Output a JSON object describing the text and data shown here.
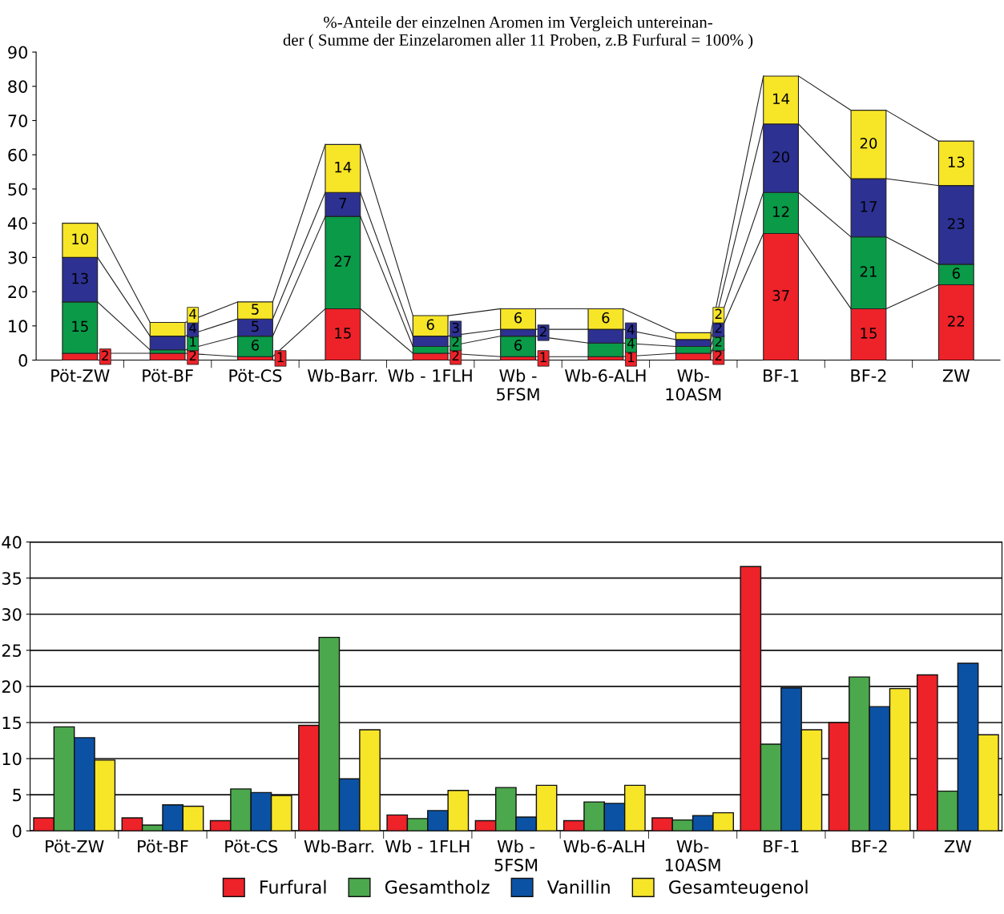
{
  "chart_data": [
    {
      "type": "bar",
      "title": "%-Anteile der einzelnen Aromen im Vergleich untereinan-\nder ( Summe der Einzelaromen aller 11 Proben, z.B Furfural = 100% )",
      "categories": [
        "Pöt-ZW",
        "Pöt-BF",
        "Pöt-CS",
        "Wb-Barr.",
        "Wb - 1FLH",
        "Wb -\n5FSM",
        "Wb-6-ALH",
        "Wb-\n10ASM",
        "BF-1",
        "BF-2",
        "ZW"
      ],
      "stacked": true,
      "data_labels": true,
      "grid": false,
      "legend": false,
      "ylim": [
        0,
        90
      ],
      "yticks": [
        0,
        10,
        20,
        30,
        40,
        50,
        60,
        70,
        80,
        90
      ],
      "series": [
        {
          "color": "#ee2229",
          "values": [
            2,
            2,
            1,
            15,
            2,
            1,
            1,
            2,
            37,
            15,
            22
          ]
        },
        {
          "color": "#0a9a48",
          "values": [
            15,
            1,
            6,
            27,
            2,
            6,
            4,
            2,
            12,
            21,
            6
          ]
        },
        {
          "color": "#2d3192",
          "values": [
            13,
            4,
            5,
            7,
            3,
            2,
            4,
            2,
            20,
            17,
            23
          ]
        },
        {
          "color": "#f7e528",
          "values": [
            10,
            4,
            5,
            14,
            6,
            6,
            6,
            2,
            14,
            20,
            13
          ]
        }
      ]
    },
    {
      "type": "bar",
      "categories": [
        "Pöt-ZW",
        "Pöt-BF",
        "Pöt-CS",
        "Wb-Barr.",
        "Wb - 1FLH",
        "Wb -\n5FSM",
        "Wb-6-ALH",
        "Wb-\n10ASM",
        "BF-1",
        "BF-2",
        "ZW"
      ],
      "grid": "y",
      "legend": "bottom",
      "ylim": [
        0,
        40
      ],
      "yticks": [
        0,
        5,
        10,
        15,
        20,
        25,
        30,
        35,
        40
      ],
      "series": [
        {
          "name": "Furfural",
          "color": "#ee2229",
          "values": [
            1.8,
            1.8,
            1.4,
            14.6,
            2.2,
            1.4,
            1.4,
            1.8,
            36.6,
            15.0,
            21.6
          ]
        },
        {
          "name": "Gesamtholz",
          "color": "#4ca84c",
          "values": [
            14.4,
            0.8,
            5.8,
            26.8,
            1.7,
            6.0,
            4.0,
            1.5,
            12.0,
            21.3,
            5.5
          ]
        },
        {
          "name": "Vanillin",
          "color": "#0b52a5",
          "values": [
            12.9,
            3.6,
            5.3,
            7.2,
            2.8,
            1.9,
            3.8,
            2.1,
            19.8,
            17.2,
            23.2
          ]
        },
        {
          "name": "Gesamteugenol",
          "color": "#f7e528",
          "values": [
            9.8,
            3.4,
            4.9,
            14.0,
            5.6,
            6.3,
            6.3,
            2.5,
            14.0,
            19.7,
            13.3
          ]
        }
      ]
    }
  ]
}
